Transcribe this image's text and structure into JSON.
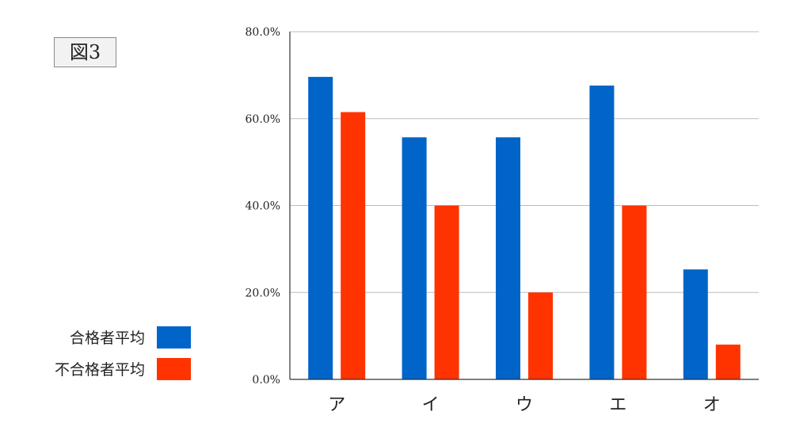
{
  "figure_label": "図3",
  "colors": {
    "pass": "#0064C8",
    "fail": "#FF3300",
    "grid": "#bdbdbd",
    "axis": "#333333"
  },
  "chart_data": {
    "type": "bar",
    "title": "",
    "xlabel": "",
    "ylabel": "",
    "categories": [
      "ア",
      "イ",
      "ウ",
      "エ",
      "オ"
    ],
    "series": [
      {
        "name": "合格者平均",
        "values": [
          69.6,
          55.7,
          55.7,
          67.6,
          25.3
        ],
        "color": "#0064C8"
      },
      {
        "name": "不合格者平均",
        "values": [
          61.5,
          40.0,
          20.0,
          40.0,
          8.0
        ],
        "color": "#FF3300"
      }
    ],
    "ylim": [
      0,
      80
    ],
    "yticks": [
      0,
      20,
      40,
      60,
      80
    ],
    "ytick_labels": [
      "0.0%",
      "20.0%",
      "40.0%",
      "60.0%",
      "80.0%"
    ],
    "grid": true,
    "legend_position": "bottom-left"
  }
}
